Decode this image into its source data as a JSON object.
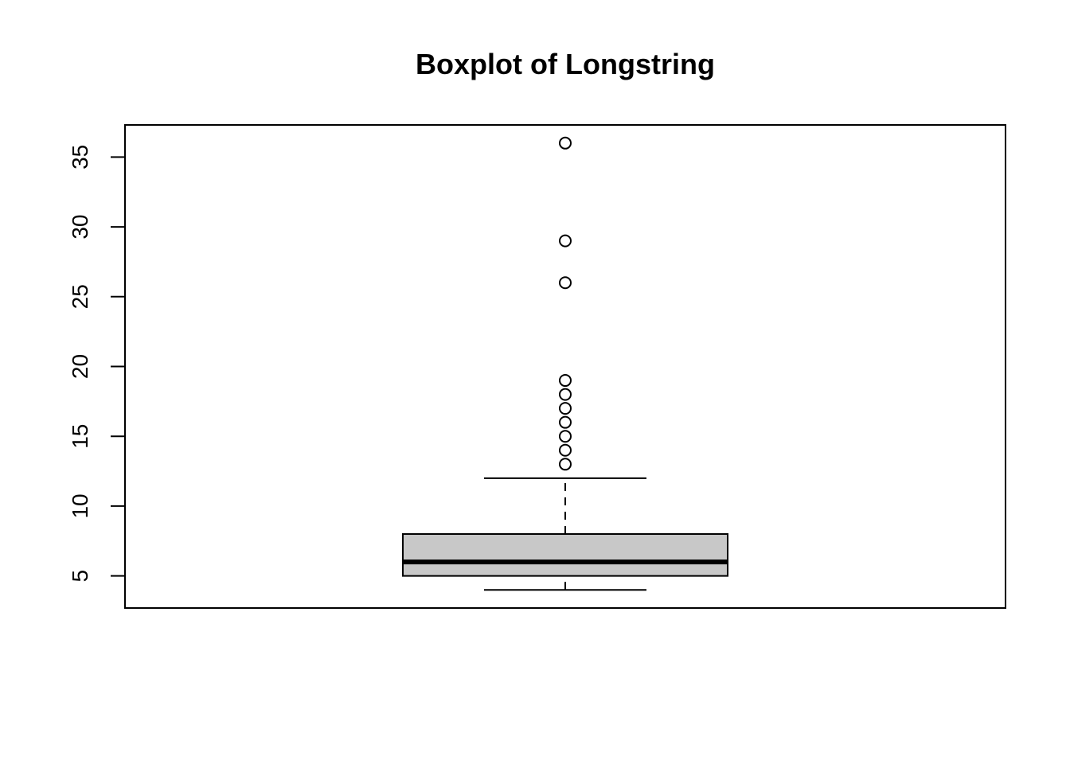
{
  "chart_data": {
    "type": "boxplot",
    "title": "Boxplot of Longstring",
    "xlabel": "",
    "ylabel": "",
    "ylim": [
      2.7,
      37.3
    ],
    "yticks": [
      5,
      10,
      15,
      20,
      25,
      30,
      35
    ],
    "grid": false,
    "box": {
      "whisker_low": 4,
      "q1": 5,
      "median": 6,
      "q3": 8,
      "whisker_high": 12
    },
    "outliers": [
      13,
      14,
      15,
      16,
      17,
      18,
      19,
      26,
      29,
      36
    ],
    "colors": {
      "box_fill": "#c8c8c8",
      "line": "#000000"
    }
  }
}
